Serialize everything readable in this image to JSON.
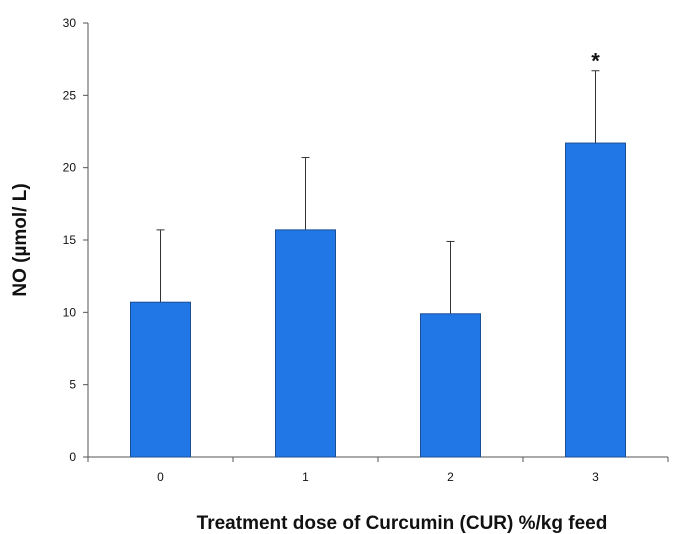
{
  "chart_data": {
    "type": "bar",
    "title": "",
    "xlabel": "Treatment dose of Curcumin  (CUR) %/kg  feed",
    "ylabel": "NO (µmol/ L)",
    "categories": [
      "0",
      "1",
      "2",
      "3"
    ],
    "values": [
      10.7,
      15.7,
      9.9,
      21.7
    ],
    "error_upper": [
      5.0,
      5.0,
      5.0,
      5.0
    ],
    "annotations": [
      "",
      "",
      "",
      "*"
    ],
    "ylim": [
      0,
      30
    ],
    "yticks": [
      "0",
      "5",
      "10",
      "15",
      "20",
      "25",
      "30"
    ],
    "grid": false,
    "legend": "none",
    "bar_color": "#2277e6",
    "bar_edge_color": "#1a4f96"
  }
}
